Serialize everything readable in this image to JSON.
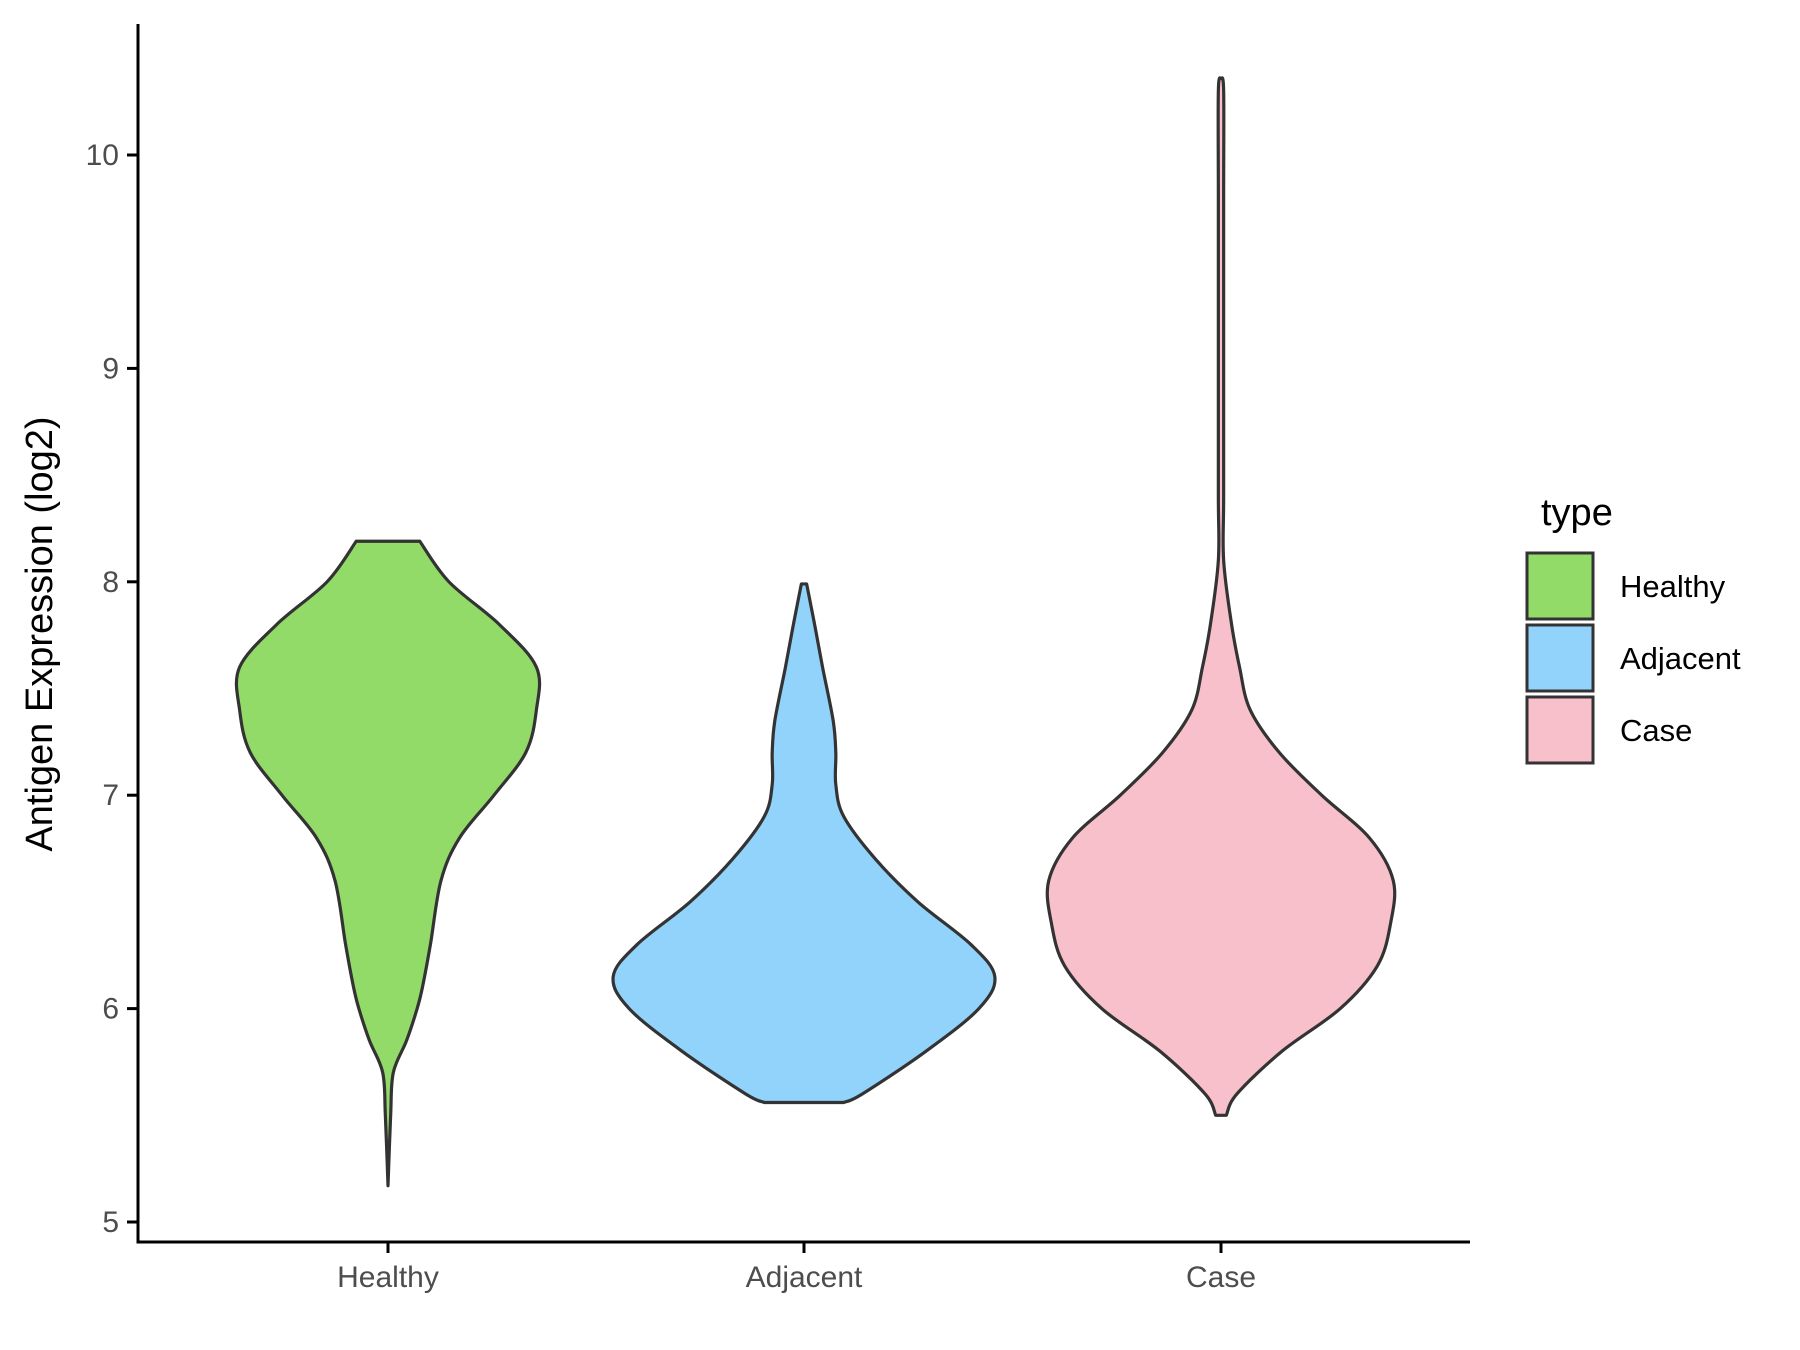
{
  "chart_data": {
    "type": "violin",
    "ylabel": "Antigen Expression (log2)",
    "xlabel": "",
    "ylim": [
      4.92,
      10.62
    ],
    "yticks": [
      5,
      6,
      7,
      8,
      9,
      10
    ],
    "categories": [
      "Healthy",
      "Adjacent",
      "Case"
    ],
    "grid": false,
    "legend": {
      "title": "type",
      "position": "right",
      "entries": [
        {
          "label": "Healthy",
          "color": "#93DB69"
        },
        {
          "label": "Adjacent",
          "color": "#92D3FC"
        },
        {
          "label": "Case",
          "color": "#F7C0CB"
        }
      ]
    },
    "series": [
      {
        "category": "Healthy",
        "color": "#93DB69",
        "min": 5.17,
        "max": 8.19,
        "profile": [
          [
            5.17,
            0.0
          ],
          [
            5.5,
            0.01
          ],
          [
            5.7,
            0.02
          ],
          [
            5.85,
            0.07
          ],
          [
            6.0,
            0.11
          ],
          [
            6.1,
            0.13
          ],
          [
            6.3,
            0.16
          ],
          [
            6.6,
            0.2
          ],
          [
            6.8,
            0.27
          ],
          [
            7.0,
            0.4
          ],
          [
            7.2,
            0.52
          ],
          [
            7.4,
            0.56
          ],
          [
            7.6,
            0.56
          ],
          [
            7.8,
            0.42
          ],
          [
            8.0,
            0.23
          ],
          [
            8.19,
            0.12
          ]
        ]
      },
      {
        "category": "Adjacent",
        "color": "#92D3FC",
        "min": 5.56,
        "max": 7.99,
        "profile": [
          [
            5.56,
            0.15
          ],
          [
            5.6,
            0.22
          ],
          [
            5.8,
            0.46
          ],
          [
            6.0,
            0.66
          ],
          [
            6.15,
            0.72
          ],
          [
            6.3,
            0.63
          ],
          [
            6.5,
            0.43
          ],
          [
            6.7,
            0.27
          ],
          [
            6.9,
            0.15
          ],
          [
            7.05,
            0.12
          ],
          [
            7.2,
            0.12
          ],
          [
            7.35,
            0.11
          ],
          [
            7.6,
            0.07
          ],
          [
            7.8,
            0.04
          ],
          [
            7.99,
            0.01
          ]
        ]
      },
      {
        "category": "Case",
        "color": "#F7C0CB",
        "min": 5.5,
        "max": 10.36,
        "profile": [
          [
            5.5,
            0.02
          ],
          [
            5.6,
            0.06
          ],
          [
            5.8,
            0.23
          ],
          [
            6.0,
            0.45
          ],
          [
            6.2,
            0.59
          ],
          [
            6.4,
            0.64
          ],
          [
            6.6,
            0.65
          ],
          [
            6.8,
            0.56
          ],
          [
            7.0,
            0.38
          ],
          [
            7.2,
            0.22
          ],
          [
            7.4,
            0.11
          ],
          [
            7.6,
            0.07
          ],
          [
            7.8,
            0.04
          ],
          [
            8.1,
            0.01
          ],
          [
            8.4,
            0.01
          ],
          [
            9.0,
            0.01
          ],
          [
            9.8,
            0.01
          ],
          [
            10.3,
            0.01
          ],
          [
            10.36,
            0.0
          ]
        ]
      }
    ]
  }
}
